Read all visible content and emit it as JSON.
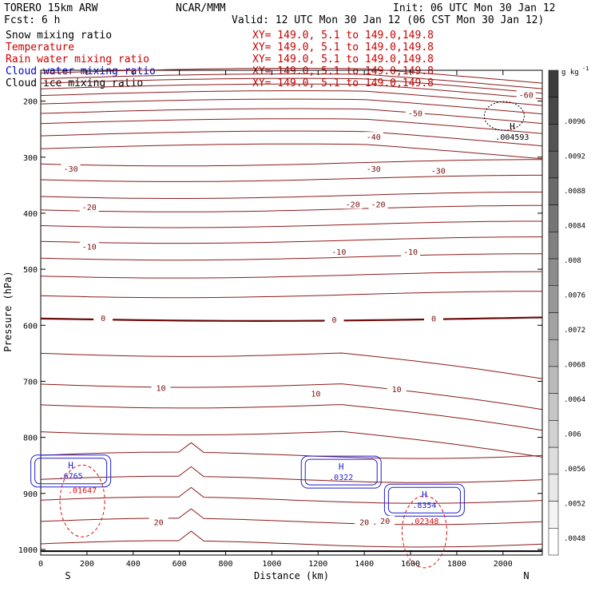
{
  "header": {
    "model": "TORERO  15km ARW",
    "center": "NCAR/MMM",
    "init": "Init: 06 UTC Mon 30 Jan 12",
    "fcst": "Fcst:    6 h",
    "valid": "Valid: 12 UTC Mon 30 Jan 12 (06 CST Mon 30 Jan 12)"
  },
  "legend": [
    {
      "name": "Snow mixing ratio",
      "color": "#000000",
      "xy": "XY= 149.0,  5.1 to 149.0,149.8"
    },
    {
      "name": "Temperature",
      "color": "#cc0000",
      "xy": "XY= 149.0,  5.1 to 149.0,149.8"
    },
    {
      "name": "Rain water mixing ratio",
      "color": "#cc0000",
      "xy": "XY= 149.0,  5.1 to 149.0,149.8"
    },
    {
      "name": "Cloud water mixing ratio",
      "color": "#0000cc",
      "xy": "XY= 149.0,  5.1 to 149.0,149.8"
    },
    {
      "name": "Cloud ice mixing ratio",
      "color": "#000000",
      "xy": "XY= 149.0,  5.1 to 149.0,149.8"
    }
  ],
  "chart_data": {
    "type": "cross-section contour",
    "xlabel": "Distance (km)",
    "ylabel": "Pressure (hPa)",
    "xlim": [
      0,
      2170
    ],
    "ylim": [
      1010,
      145
    ],
    "x_ticks": [
      0,
      200,
      400,
      600,
      800,
      1000,
      1200,
      1400,
      1600,
      1800,
      2000
    ],
    "y_ticks": [
      200,
      300,
      400,
      500,
      600,
      700,
      800,
      900,
      1000
    ],
    "x_end_labels": {
      "left": "S",
      "right": "N"
    },
    "isotherm_labels": [
      {
        "text": "-60",
        "x": 2100,
        "p": 190
      },
      {
        "text": "-50",
        "x": 1620,
        "p": 223
      },
      {
        "text": "-40",
        "x": 1440,
        "p": 265
      },
      {
        "text": "-30",
        "x": 130,
        "p": 322
      },
      {
        "text": "-30",
        "x": 1440,
        "p": 322
      },
      {
        "text": "-30",
        "x": 1720,
        "p": 325
      },
      {
        "text": "-20",
        "x": 210,
        "p": 390
      },
      {
        "text": "-20",
        "x": 1350,
        "p": 385
      },
      {
        "text": "-20",
        "x": 1460,
        "p": 385
      },
      {
        "text": "-10",
        "x": 210,
        "p": 461
      },
      {
        "text": "-10",
        "x": 1290,
        "p": 470
      },
      {
        "text": "-10",
        "x": 1600,
        "p": 470
      },
      {
        "text": "0",
        "x": 270,
        "p": 588
      },
      {
        "text": "0",
        "x": 1270,
        "p": 591
      },
      {
        "text": "0",
        "x": 1700,
        "p": 589
      },
      {
        "text": "10",
        "x": 520,
        "p": 713
      },
      {
        "text": "10",
        "x": 1190,
        "p": 723
      },
      {
        "text": "10",
        "x": 1540,
        "p": 715
      },
      {
        "text": "20",
        "x": 510,
        "p": 952
      },
      {
        "text": "20",
        "x": 1400,
        "p": 952
      },
      {
        "text": "20",
        "x": 1490,
        "p": 950
      }
    ],
    "cloud_water_maxima": [
      {
        "label": "H",
        "value": ".6765",
        "x": 130,
        "p": 860
      },
      {
        "label": "H",
        "value": ".0322",
        "x": 1300,
        "p": 862
      },
      {
        "label": "H",
        "value": ".8354",
        "x": 1660,
        "p": 912
      }
    ],
    "rain_maxima": [
      {
        "value": ".01647",
        "x": 180,
        "p": 885
      },
      {
        "value": ".02348",
        "x": 1660,
        "p": 940
      }
    ],
    "cloud_ice_maxima": [
      {
        "label": "H",
        "value": ".004593",
        "x": 2040,
        "p": 255
      }
    ],
    "colorbar": {
      "unit": "g kg",
      "unit_exp": "-1",
      "labels": [
        ".0096",
        ".0092",
        ".0088",
        ".0084",
        ".008",
        ".0076",
        ".0072",
        ".0068",
        ".0064",
        ".006",
        ".0056",
        ".0052",
        ".0048"
      ]
    }
  }
}
